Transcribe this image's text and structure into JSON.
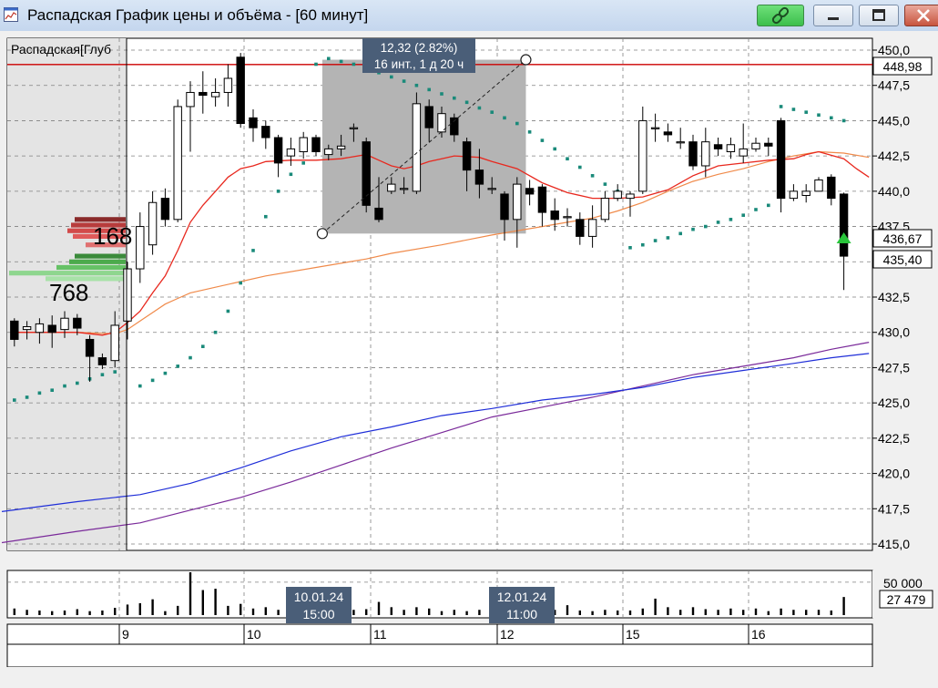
{
  "window": {
    "title": "Распадская График цены и объёма - [60 минут]",
    "icons": {
      "app": "chart-window-icon",
      "link": "link-icon",
      "minimize": "minimize-icon",
      "maximize": "maximize-icon",
      "close": "close-icon"
    }
  },
  "chart_data": {
    "type": "candlestick",
    "title": "Распадская[Глуб",
    "y_axis": {
      "ylim": [
        415,
        450
      ],
      "ticks": [
        "450,0",
        "447,5",
        "445,0",
        "442,5",
        "440,0",
        "437,5",
        "435,0",
        "432,5",
        "430,0",
        "427,5",
        "425,0",
        "422,5",
        "420,0",
        "417,5",
        "415,0"
      ]
    },
    "price_labels": {
      "horizontal_line": "448,98",
      "current": "436,67",
      "low": "435,40"
    },
    "horizontal_line_value": 448.98,
    "colors": {
      "up_body": "#ffffff",
      "down_body": "#000000",
      "hline": "#cc0000",
      "ma_fast": "#e8281e",
      "ma_medium": "#f08a4a",
      "ma_slow_blue": "#1f2ed8",
      "ma_slow_purple": "#7a2a9a",
      "parabolic_sar": "#1a8a7a",
      "measure_box": "#b4b4b4"
    },
    "measurement": {
      "line1": "12,32 (2.82%)",
      "line2": "16 инт., 1 д 20 ч",
      "from": 437,
      "to": 449.32
    },
    "depth": {
      "ask_total": "168",
      "bid_total": "768"
    },
    "x_axis": {
      "day_labels": [
        "9",
        "10",
        "11",
        "12",
        "15",
        "16"
      ]
    },
    "time_tooltips": [
      {
        "date": "10.01.24",
        "time": "15:00"
      },
      {
        "date": "12.01.24",
        "time": "11:00"
      }
    ],
    "candles": [
      [
        430.8,
        429.5,
        431.0,
        429.0
      ],
      [
        430.2,
        430.4,
        430.8,
        429.5
      ],
      [
        430.0,
        430.6,
        431.0,
        429.2
      ],
      [
        430.5,
        430.0,
        431.2,
        428.9
      ],
      [
        430.2,
        431.0,
        431.5,
        429.6
      ],
      [
        431.0,
        430.3,
        431.3,
        429.8
      ],
      [
        429.5,
        428.3,
        429.8,
        426.5
      ],
      [
        428.2,
        427.7,
        428.5,
        427.4
      ],
      [
        428.0,
        430.5,
        431.5,
        427.5
      ],
      [
        430.8,
        434.5,
        435.0,
        429.5
      ],
      [
        434.5,
        437.5,
        438.5,
        433.5
      ],
      [
        436.2,
        439.2,
        440.0,
        435.5
      ],
      [
        439.5,
        438.0,
        440.2,
        437.5
      ],
      [
        438.0,
        446.0,
        446.5,
        437.8
      ],
      [
        446.0,
        447.0,
        447.8,
        442.8
      ],
      [
        447.0,
        446.8,
        448.5,
        445.5
      ],
      [
        446.7,
        447.0,
        448.0,
        446.0
      ],
      [
        447.0,
        448.0,
        449.0,
        446.0
      ],
      [
        449.5,
        444.8,
        449.8,
        444.5
      ],
      [
        445.2,
        444.5,
        445.8,
        443.5
      ],
      [
        444.6,
        443.8,
        445.0,
        443.0
      ],
      [
        443.8,
        442.0,
        444.0,
        441.0
      ],
      [
        442.5,
        443.0,
        443.8,
        441.8
      ],
      [
        442.8,
        443.8,
        444.2,
        442.3
      ],
      [
        443.8,
        442.8,
        444.0,
        442.5
      ],
      [
        442.6,
        443.0,
        443.3,
        442.2
      ],
      [
        443.0,
        443.2,
        444.0,
        442.5
      ],
      [
        444.5,
        444.5,
        444.8,
        443.5
      ],
      [
        443.5,
        439.0,
        443.8,
        438.5
      ],
      [
        438.8,
        438.0,
        441.0,
        437.8
      ],
      [
        440.0,
        440.5,
        441.0,
        439.8
      ],
      [
        440.2,
        440.2,
        441.0,
        439.8
      ],
      [
        440.0,
        446.2,
        447.0,
        439.8
      ],
      [
        446.0,
        444.5,
        446.5,
        443.5
      ],
      [
        444.2,
        445.5,
        446.0,
        443.8
      ],
      [
        445.2,
        444.0,
        445.5,
        443.5
      ],
      [
        443.5,
        441.5,
        443.8,
        440.0
      ],
      [
        441.5,
        440.5,
        443.0,
        439.5
      ],
      [
        440.2,
        440.2,
        441.0,
        439.8
      ],
      [
        439.8,
        438.0,
        440.0,
        436.5
      ],
      [
        438.0,
        440.5,
        441.0,
        436.0
      ],
      [
        440.2,
        439.8,
        440.8,
        439.0
      ],
      [
        440.3,
        438.5,
        440.5,
        437.5
      ],
      [
        438.6,
        438.0,
        439.5,
        437.2
      ],
      [
        438.2,
        438.2,
        438.8,
        437.5
      ],
      [
        438.0,
        436.8,
        438.5,
        436.2
      ],
      [
        436.8,
        438.0,
        439.0,
        436.0
      ],
      [
        438.0,
        439.5,
        440.0,
        437.8
      ],
      [
        439.5,
        440.0,
        440.5,
        439.3
      ],
      [
        439.5,
        439.8,
        440.0,
        438.2
      ],
      [
        440.0,
        445.0,
        446.0,
        439.8
      ],
      [
        444.5,
        444.5,
        445.5,
        443.5
      ],
      [
        444.2,
        444.0,
        444.8,
        443.5
      ],
      [
        443.5,
        443.5,
        444.5,
        443.0
      ],
      [
        443.5,
        441.8,
        444.0,
        441.5
      ],
      [
        441.8,
        443.5,
        444.5,
        441.0
      ],
      [
        443.3,
        443.0,
        443.8,
        442.5
      ],
      [
        442.8,
        443.3,
        443.8,
        442.3
      ],
      [
        442.5,
        443.0,
        444.8,
        442.0
      ],
      [
        443.0,
        443.4,
        443.8,
        442.8
      ],
      [
        443.4,
        443.2,
        443.8,
        442.5
      ],
      [
        445.0,
        439.5,
        445.2,
        438.5
      ],
      [
        439.5,
        440.0,
        440.5,
        439.3
      ],
      [
        439.7,
        440.0,
        440.5,
        439.2
      ],
      [
        440.0,
        440.8,
        441.0,
        440.0
      ],
      [
        441.0,
        439.5,
        441.2,
        439.0
      ],
      [
        439.8,
        435.4,
        439.9,
        433.0
      ]
    ],
    "ma_fast": [
      [
        0,
        430.0
      ],
      [
        5,
        430.0
      ],
      [
        7,
        429.8
      ],
      [
        8,
        430.0
      ],
      [
        9,
        430.7
      ],
      [
        10,
        431.5
      ],
      [
        11,
        432.8
      ],
      [
        12,
        434.0
      ],
      [
        13,
        435.8
      ],
      [
        14,
        437.8
      ],
      [
        15,
        439.0
      ],
      [
        16,
        440.0
      ],
      [
        17,
        441.0
      ],
      [
        18,
        441.6
      ],
      [
        19,
        441.8
      ],
      [
        20,
        442.1
      ],
      [
        22,
        442.2
      ],
      [
        24,
        442.2
      ],
      [
        26,
        442.3
      ],
      [
        28,
        442.6
      ],
      [
        29,
        442.2
      ],
      [
        30,
        441.8
      ],
      [
        31,
        441.6
      ],
      [
        32,
        441.8
      ],
      [
        33,
        442.1
      ],
      [
        34,
        442.3
      ],
      [
        35,
        442.5
      ],
      [
        37,
        442.4
      ],
      [
        38,
        442.1
      ],
      [
        40,
        441.6
      ],
      [
        42,
        440.6
      ],
      [
        44,
        439.9
      ],
      [
        46,
        439.5
      ],
      [
        48,
        439.5
      ],
      [
        50,
        439.6
      ],
      [
        52,
        440.1
      ],
      [
        54,
        441.1
      ],
      [
        56,
        441.8
      ],
      [
        58,
        442.0
      ],
      [
        60,
        442.2
      ],
      [
        62,
        442.3
      ],
      [
        63,
        442.6
      ],
      [
        64,
        442.8
      ],
      [
        66,
        442.3
      ],
      [
        67,
        441.6
      ],
      [
        68,
        441.0
      ]
    ],
    "ma_medium": [
      [
        0,
        430.0
      ],
      [
        5,
        430.0
      ],
      [
        8,
        429.9
      ],
      [
        9,
        430.2
      ],
      [
        10,
        430.8
      ],
      [
        11,
        431.4
      ],
      [
        12,
        432.0
      ],
      [
        13,
        432.4
      ],
      [
        14,
        432.8
      ],
      [
        16,
        433.2
      ],
      [
        18,
        433.6
      ],
      [
        20,
        434.0
      ],
      [
        24,
        434.6
      ],
      [
        28,
        435.2
      ],
      [
        30,
        435.6
      ],
      [
        34,
        436.2
      ],
      [
        38,
        436.9
      ],
      [
        42,
        437.5
      ],
      [
        44,
        437.8
      ],
      [
        46,
        438.1
      ],
      [
        48,
        438.6
      ],
      [
        50,
        439.2
      ],
      [
        52,
        440.0
      ],
      [
        54,
        440.7
      ],
      [
        56,
        441.2
      ],
      [
        58,
        441.6
      ],
      [
        60,
        442.1
      ],
      [
        62,
        442.5
      ],
      [
        64,
        442.8
      ],
      [
        66,
        442.7
      ],
      [
        68,
        442.4
      ]
    ],
    "ma_slow_blue": [
      [
        -1,
        417.3
      ],
      [
        5,
        418.0
      ],
      [
        10,
        418.5
      ],
      [
        14,
        419.3
      ],
      [
        18,
        420.4
      ],
      [
        22,
        421.6
      ],
      [
        26,
        422.6
      ],
      [
        30,
        423.3
      ],
      [
        34,
        424.1
      ],
      [
        38,
        424.6
      ],
      [
        42,
        425.2
      ],
      [
        46,
        425.6
      ],
      [
        50,
        426.1
      ],
      [
        54,
        426.8
      ],
      [
        58,
        427.3
      ],
      [
        62,
        427.8
      ],
      [
        65,
        428.2
      ],
      [
        68,
        428.5
      ]
    ],
    "ma_slow_purple": [
      [
        -1,
        415.1
      ],
      [
        5,
        415.9
      ],
      [
        10,
        416.5
      ],
      [
        14,
        417.4
      ],
      [
        18,
        418.3
      ],
      [
        22,
        419.4
      ],
      [
        26,
        420.6
      ],
      [
        30,
        421.8
      ],
      [
        34,
        422.9
      ],
      [
        38,
        424.0
      ],
      [
        42,
        424.7
      ],
      [
        46,
        425.4
      ],
      [
        50,
        426.2
      ],
      [
        54,
        427.0
      ],
      [
        58,
        427.6
      ],
      [
        62,
        428.2
      ],
      [
        65,
        428.8
      ],
      [
        68,
        429.3
      ]
    ],
    "parabolic_sar": [
      [
        0,
        425.2
      ],
      [
        1,
        425.4
      ],
      [
        2,
        425.7
      ],
      [
        3,
        425.9
      ],
      [
        4,
        426.2
      ],
      [
        5,
        426.4
      ],
      [
        6,
        426.7
      ],
      [
        7,
        427.0
      ],
      [
        8,
        427.2
      ],
      [
        9,
        432.6
      ],
      [
        10,
        426.2
      ],
      [
        11,
        426.6
      ],
      [
        12,
        427.1
      ],
      [
        13,
        427.6
      ],
      [
        14,
        428.2
      ],
      [
        15,
        429.0
      ],
      [
        16,
        430.0
      ],
      [
        17,
        431.5
      ],
      [
        18,
        433.5
      ],
      [
        19,
        435.8
      ],
      [
        20,
        438.2
      ],
      [
        21,
        440.0
      ],
      [
        22,
        441.2
      ],
      [
        23,
        442.0
      ],
      [
        24,
        449.0
      ],
      [
        25,
        449.4
      ],
      [
        26,
        449.2
      ],
      [
        27,
        449.0
      ],
      [
        28,
        448.7
      ],
      [
        29,
        448.4
      ],
      [
        30,
        448.1
      ],
      [
        31,
        447.8
      ],
      [
        32,
        447.5
      ],
      [
        33,
        447.2
      ],
      [
        34,
        446.9
      ],
      [
        35,
        446.6
      ],
      [
        36,
        446.3
      ],
      [
        37,
        445.9
      ],
      [
        38,
        445.6
      ],
      [
        39,
        445.2
      ],
      [
        40,
        444.8
      ],
      [
        41,
        444.2
      ],
      [
        42,
        443.6
      ],
      [
        43,
        443.0
      ],
      [
        44,
        442.3
      ],
      [
        45,
        441.7
      ],
      [
        46,
        441.1
      ],
      [
        47,
        440.5
      ],
      [
        48,
        440.0
      ],
      [
        49,
        436.0
      ],
      [
        50,
        436.2
      ],
      [
        51,
        436.5
      ],
      [
        52,
        436.7
      ],
      [
        53,
        437.0
      ],
      [
        54,
        437.3
      ],
      [
        55,
        437.5
      ],
      [
        56,
        437.8
      ],
      [
        57,
        438.0
      ],
      [
        58,
        438.3
      ],
      [
        59,
        438.7
      ],
      [
        60,
        439.0
      ],
      [
        61,
        446.0
      ],
      [
        62,
        445.8
      ],
      [
        63,
        445.6
      ],
      [
        64,
        445.4
      ],
      [
        65,
        445.2
      ],
      [
        66,
        445.0
      ]
    ],
    "volume": {
      "ticks": [
        "50 000"
      ],
      "current": "27 479",
      "ymax": 65000,
      "values": [
        10000,
        8000,
        7000,
        6000,
        7000,
        9000,
        6000,
        7000,
        11000,
        16000,
        18000,
        24000,
        6000,
        14000,
        65000,
        38000,
        40000,
        14000,
        17000,
        10000,
        12000,
        8000,
        8000,
        9000,
        16000,
        12000,
        5000,
        8000,
        9000,
        20000,
        12000,
        8000,
        12000,
        10000,
        6000,
        8000,
        6000,
        8000,
        10000,
        8000,
        12000,
        6000,
        9000,
        8000,
        15000,
        7000,
        6000,
        8000,
        7000,
        7000,
        10000,
        25000,
        12000,
        8000,
        12000,
        9000,
        8000,
        10000,
        8000,
        10000,
        6000,
        10000,
        8000,
        8000,
        8000,
        7000,
        27479
      ]
    }
  }
}
